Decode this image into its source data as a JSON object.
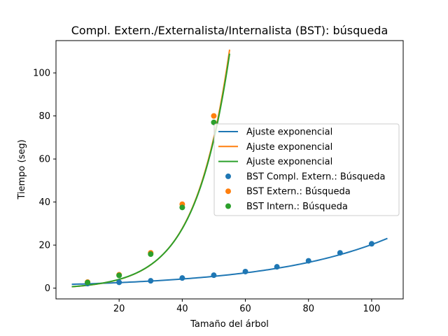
{
  "chart_data": {
    "type": "line",
    "title": "Compl. Extern./Externalista/Internalista (BST): búsqueda",
    "xlabel": "Tamaño del árbol",
    "ylabel": "Tiempo (seg)",
    "xlim": [
      0,
      110
    ],
    "ylim": [
      -5,
      115
    ],
    "xticks": [
      20,
      40,
      60,
      80,
      100
    ],
    "yticks": [
      0,
      20,
      40,
      60,
      80,
      100
    ],
    "grid": false,
    "legend_position": "center-right",
    "fits": [
      {
        "name": "Ajuste exponencial",
        "color": "#1f77b4",
        "x_range": [
          5,
          105
        ],
        "model": {
          "a": 1.4,
          "b": 0.02663,
          "c": 0.18
        }
      },
      {
        "name": "Ajuste exponencial",
        "color": "#ff7f0e",
        "x_range": [
          5,
          55
        ],
        "model": {
          "a": 0.73,
          "b": 0.0914,
          "c": -0.5
        }
      },
      {
        "name": "Ajuste exponencial",
        "color": "#2ca02c",
        "x_range": [
          5,
          55
        ],
        "model": {
          "a": 0.75,
          "b": 0.0906,
          "c": -0.5
        }
      }
    ],
    "series": [
      {
        "name": "BST Compl. Extern.: Búsqueda",
        "color": "#1f77b4",
        "x": [
          10,
          20,
          30,
          40,
          50,
          60,
          70,
          80,
          90,
          100
        ],
        "y": [
          2.1,
          2.7,
          3.4,
          4.7,
          6.0,
          7.7,
          9.9,
          12.7,
          16.4,
          20.6
        ]
      },
      {
        "name": "BST Extern.: Búsqueda",
        "color": "#ff7f0e",
        "x": [
          10,
          20,
          30,
          40,
          50
        ],
        "y": [
          2.8,
          6.2,
          16.4,
          39.0,
          80.0
        ]
      },
      {
        "name": "BST Intern.: Búsqueda",
        "color": "#2ca02c",
        "x": [
          10,
          20,
          30,
          40,
          50
        ],
        "y": [
          2.6,
          5.9,
          15.8,
          37.5,
          77.0
        ]
      }
    ]
  }
}
